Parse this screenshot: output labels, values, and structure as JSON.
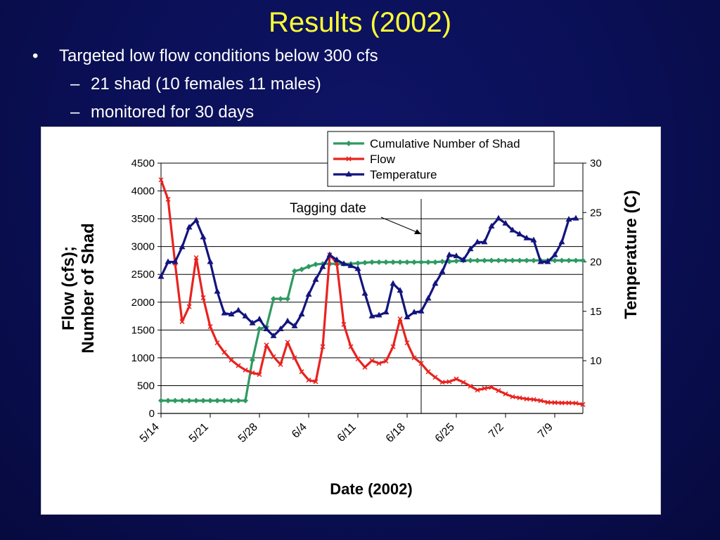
{
  "slide": {
    "title": "Results (2002)",
    "bullets": [
      {
        "marker": "•",
        "text": "Targeted low flow conditions below 300 cfs"
      },
      {
        "marker": "–",
        "text": "21 shad (10 females 11 males)"
      },
      {
        "marker": "–",
        "text": "monitored for 30 days"
      }
    ]
  },
  "chart_data": {
    "type": "line",
    "title": "",
    "xlabel": "Date (2002)",
    "ylabel_left": [
      "Flow (cfs);",
      "Number of Shad"
    ],
    "ylabel_right": "Temperature (C)",
    "x_ticks": [
      "5/14",
      "5/21",
      "5/28",
      "6/4",
      "6/11",
      "6/18",
      "6/25",
      "7/2",
      "7/9"
    ],
    "x_range_days": [
      0,
      60
    ],
    "x_start_label": "5/14",
    "y_left": {
      "min": 0,
      "max": 4500,
      "ticks": [
        0,
        500,
        1000,
        1500,
        2000,
        2500,
        3000,
        3500,
        4000,
        4500
      ]
    },
    "y_right": {
      "ticks": [
        10,
        15,
        20,
        25,
        30
      ],
      "min_visible": 5,
      "max_visible": 30
    },
    "grid": "horizontal",
    "legend": "top-right",
    "annotation": {
      "text": "Tagging date",
      "day": 37
    },
    "series": [
      {
        "name": "Cumulative Number of Shad",
        "axis": "left",
        "color": "#2e9a62",
        "marker": "diamond",
        "values": [
          [
            0,
            230
          ],
          [
            1,
            230
          ],
          [
            2,
            230
          ],
          [
            3,
            230
          ],
          [
            4,
            230
          ],
          [
            5,
            230
          ],
          [
            6,
            230
          ],
          [
            7,
            230
          ],
          [
            8,
            230
          ],
          [
            9,
            230
          ],
          [
            10,
            230
          ],
          [
            11,
            230
          ],
          [
            12,
            230
          ],
          [
            13,
            960
          ],
          [
            14,
            1520
          ],
          [
            15,
            1560
          ],
          [
            16,
            2060
          ],
          [
            17,
            2060
          ],
          [
            18,
            2060
          ],
          [
            19,
            2560
          ],
          [
            20,
            2590
          ],
          [
            21,
            2640
          ],
          [
            22,
            2680
          ],
          [
            23,
            2690
          ],
          [
            24,
            2690
          ],
          [
            25,
            2690
          ],
          [
            26,
            2690
          ],
          [
            27,
            2690
          ],
          [
            28,
            2700
          ],
          [
            29,
            2710
          ],
          [
            30,
            2720
          ],
          [
            31,
            2720
          ],
          [
            32,
            2720
          ],
          [
            33,
            2720
          ],
          [
            34,
            2720
          ],
          [
            35,
            2720
          ],
          [
            36,
            2720
          ],
          [
            37,
            2720
          ],
          [
            38,
            2720
          ],
          [
            39,
            2720
          ],
          [
            40,
            2730
          ],
          [
            41,
            2730
          ],
          [
            42,
            2740
          ],
          [
            43,
            2750
          ],
          [
            44,
            2750
          ],
          [
            45,
            2750
          ],
          [
            46,
            2750
          ],
          [
            47,
            2750
          ],
          [
            48,
            2750
          ],
          [
            49,
            2750
          ],
          [
            50,
            2750
          ],
          [
            51,
            2750
          ],
          [
            52,
            2750
          ],
          [
            53,
            2750
          ],
          [
            54,
            2750
          ],
          [
            55,
            2750
          ],
          [
            56,
            2750
          ],
          [
            57,
            2750
          ],
          [
            58,
            2750
          ],
          [
            59,
            2750
          ],
          [
            60,
            2750
          ]
        ]
      },
      {
        "name": "Flow",
        "axis": "left",
        "color": "#e8231f",
        "marker": "x",
        "values": [
          [
            0,
            4200
          ],
          [
            1,
            3850
          ],
          [
            2,
            2700
          ],
          [
            3,
            1650
          ],
          [
            4,
            1920
          ],
          [
            5,
            2800
          ],
          [
            6,
            2080
          ],
          [
            7,
            1560
          ],
          [
            8,
            1270
          ],
          [
            9,
            1100
          ],
          [
            10,
            960
          ],
          [
            11,
            860
          ],
          [
            12,
            780
          ],
          [
            13,
            730
          ],
          [
            14,
            700
          ],
          [
            15,
            1230
          ],
          [
            16,
            1020
          ],
          [
            17,
            880
          ],
          [
            18,
            1280
          ],
          [
            19,
            1000
          ],
          [
            20,
            750
          ],
          [
            21,
            600
          ],
          [
            22,
            570
          ],
          [
            23,
            1200
          ],
          [
            24,
            2850
          ],
          [
            25,
            2700
          ],
          [
            26,
            1600
          ],
          [
            27,
            1200
          ],
          [
            28,
            980
          ],
          [
            29,
            830
          ],
          [
            30,
            950
          ],
          [
            31,
            900
          ],
          [
            32,
            940
          ],
          [
            33,
            1200
          ],
          [
            34,
            1700
          ],
          [
            35,
            1270
          ],
          [
            36,
            1000
          ],
          [
            37,
            900
          ],
          [
            38,
            750
          ],
          [
            39,
            650
          ],
          [
            40,
            560
          ],
          [
            41,
            570
          ],
          [
            42,
            620
          ],
          [
            43,
            560
          ],
          [
            44,
            490
          ],
          [
            45,
            420
          ],
          [
            46,
            450
          ],
          [
            47,
            470
          ],
          [
            48,
            410
          ],
          [
            49,
            350
          ],
          [
            50,
            300
          ],
          [
            51,
            280
          ],
          [
            52,
            260
          ],
          [
            53,
            250
          ],
          [
            54,
            230
          ],
          [
            55,
            200
          ],
          [
            56,
            195
          ],
          [
            57,
            190
          ],
          [
            58,
            190
          ],
          [
            59,
            185
          ],
          [
            60,
            160
          ]
        ]
      },
      {
        "name": "Temperature",
        "axis": "right",
        "color": "#13147e",
        "marker": "triangle",
        "values": [
          [
            0,
            18.5
          ],
          [
            1,
            20
          ],
          [
            2,
            20
          ],
          [
            3,
            21.5
          ],
          [
            4,
            23.5
          ],
          [
            5,
            24.2
          ],
          [
            6,
            22.5
          ],
          [
            7,
            20
          ],
          [
            8,
            17
          ],
          [
            9,
            14.8
          ],
          [
            10,
            14.7
          ],
          [
            11,
            15.1
          ],
          [
            12,
            14.5
          ],
          [
            13,
            13.8
          ],
          [
            14,
            14.2
          ],
          [
            15,
            13.2
          ],
          [
            16,
            12.5
          ],
          [
            17,
            13.2
          ],
          [
            18,
            14
          ],
          [
            19,
            13.5
          ],
          [
            20,
            14.7
          ],
          [
            21,
            16.7
          ],
          [
            22,
            18.2
          ],
          [
            23,
            19.5
          ],
          [
            24,
            20.7
          ],
          [
            25,
            20.2
          ],
          [
            26,
            19.8
          ],
          [
            27,
            19.6
          ],
          [
            28,
            19.3
          ],
          [
            29,
            16.8
          ],
          [
            30,
            14.5
          ],
          [
            31,
            14.6
          ],
          [
            32,
            14.9
          ],
          [
            33,
            17.8
          ],
          [
            34,
            17.1
          ],
          [
            35,
            14.4
          ],
          [
            36,
            14.9
          ],
          [
            37,
            15.0
          ],
          [
            38,
            16.3
          ],
          [
            39,
            17.8
          ],
          [
            40,
            19.0
          ],
          [
            41,
            20.7
          ],
          [
            42,
            20.6
          ],
          [
            43,
            20.2
          ],
          [
            44,
            21.3
          ],
          [
            45,
            22
          ],
          [
            46,
            22
          ],
          [
            47,
            23.6
          ],
          [
            48,
            24.4
          ],
          [
            49,
            23.9
          ],
          [
            50,
            23.2
          ],
          [
            51,
            22.8
          ],
          [
            52,
            22.4
          ],
          [
            53,
            22.2
          ],
          [
            54,
            20.0
          ],
          [
            55,
            20.0
          ],
          [
            56,
            20.7
          ],
          [
            57,
            22
          ],
          [
            58,
            24.3
          ],
          [
            59,
            24.4
          ]
        ]
      }
    ]
  }
}
